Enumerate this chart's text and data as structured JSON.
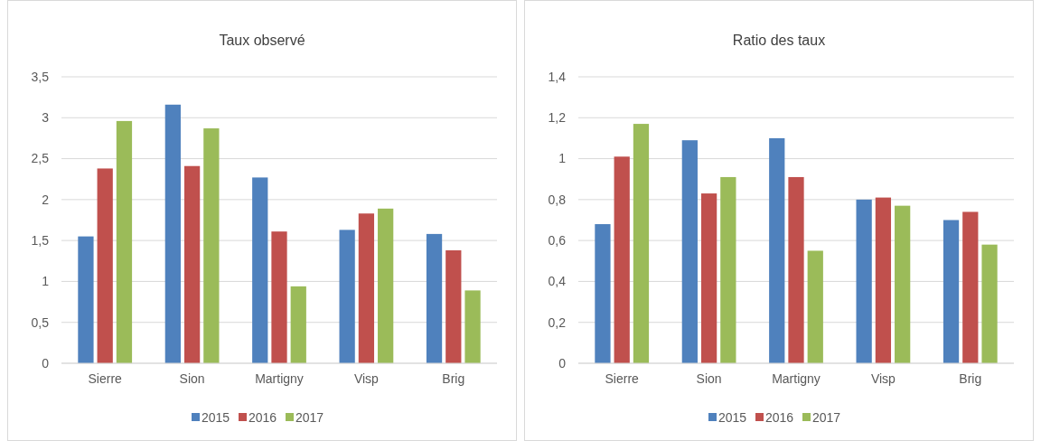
{
  "chart_data": [
    {
      "type": "bar",
      "title": "Taux observé",
      "categories": [
        "Sierre",
        "Sion",
        "Martigny",
        "Visp",
        "Brig"
      ],
      "series": [
        {
          "name": "2015",
          "color": "#4f81bd",
          "values": [
            1.55,
            3.16,
            2.27,
            1.63,
            1.58
          ]
        },
        {
          "name": "2016",
          "color": "#c0504d",
          "values": [
            2.38,
            2.41,
            1.61,
            1.83,
            1.38
          ]
        },
        {
          "name": "2017",
          "color": "#9bbb59",
          "values": [
            2.96,
            2.87,
            0.94,
            1.89,
            0.89
          ]
        }
      ],
      "ylim": [
        0,
        3.5
      ],
      "yticks": [
        0,
        {
          "value": 0.5,
          "label": "0,5"
        },
        1,
        {
          "value": 1.5,
          "label": "1,5"
        },
        2,
        {
          "value": 2.5,
          "label": "2,5"
        },
        3,
        {
          "value": 3.5,
          "label": "3,5"
        }
      ],
      "grid": "y",
      "legend": "bottom"
    },
    {
      "type": "bar",
      "title": "Ratio des taux",
      "categories": [
        "Sierre",
        "Sion",
        "Martigny",
        "Visp",
        "Brig"
      ],
      "series": [
        {
          "name": "2015",
          "color": "#4f81bd",
          "values": [
            0.68,
            1.09,
            1.1,
            0.8,
            0.7
          ]
        },
        {
          "name": "2016",
          "color": "#c0504d",
          "values": [
            1.01,
            0.83,
            0.91,
            0.81,
            0.74
          ]
        },
        {
          "name": "2017",
          "color": "#9bbb59",
          "values": [
            1.17,
            0.91,
            0.55,
            0.77,
            0.58
          ]
        }
      ],
      "ylim": [
        0,
        1.4
      ],
      "yticks": [
        0,
        {
          "value": 0.2,
          "label": "0,2"
        },
        {
          "value": 0.4,
          "label": "0,4"
        },
        {
          "value": 0.6,
          "label": "0,6"
        },
        {
          "value": 0.8,
          "label": "0,8"
        },
        1,
        {
          "value": 1.2,
          "label": "1,2"
        },
        {
          "value": 1.4,
          "label": "1,4"
        }
      ],
      "grid": "y",
      "legend": "bottom"
    }
  ]
}
